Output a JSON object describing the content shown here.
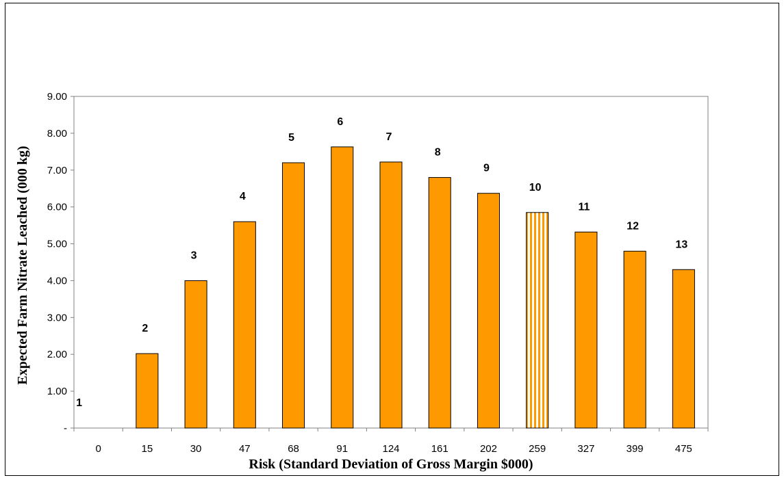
{
  "chart_data": {
    "type": "bar",
    "title": "",
    "xlabel": "Risk (Standard Deviation of Gross Margin $000)",
    "ylabel": "Expected Farm Nitrate Leached (000 kg)",
    "ylim": [
      0,
      9
    ],
    "yticks": [
      "-",
      "1.00",
      "2.00",
      "3.00",
      "4.00",
      "5.00",
      "6.00",
      "7.00",
      "8.00",
      "9.00"
    ],
    "categories": [
      "0",
      "15",
      "30",
      "47",
      "68",
      "91",
      "124",
      "161",
      "202",
      "259",
      "327",
      "399",
      "475"
    ],
    "values": [
      0,
      2.02,
      4.0,
      5.6,
      7.2,
      7.63,
      7.22,
      6.8,
      6.37,
      5.85,
      5.32,
      4.8,
      4.3
    ],
    "bar_labels": [
      "1",
      "2",
      "3",
      "4",
      "5",
      "6",
      "7",
      "8",
      "9",
      "10",
      "11",
      "12",
      "13"
    ],
    "highlighted_category": "259",
    "bar_color": "#FF9900",
    "grid": false,
    "legend": "none"
  }
}
